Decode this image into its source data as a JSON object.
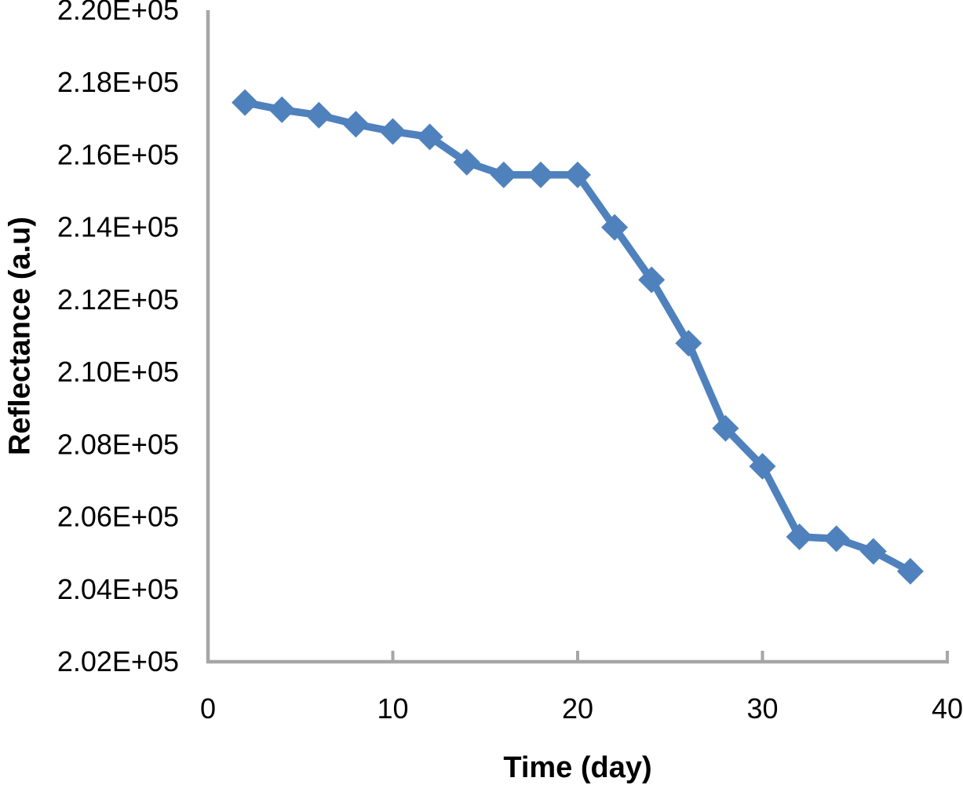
{
  "chart_data": {
    "type": "line",
    "title": "",
    "xlabel": "Time (day)",
    "ylabel": "Reflectance (a.u)",
    "x": [
      2,
      4,
      6,
      8,
      10,
      12,
      14,
      16,
      18,
      20,
      22,
      24,
      26,
      28,
      30,
      32,
      34,
      36,
      38
    ],
    "series": [
      {
        "name": "Reflectance",
        "values": [
          217450,
          217250,
          217100,
          216850,
          216650,
          216500,
          215800,
          215450,
          215450,
          215450,
          214000,
          212550,
          210800,
          208450,
          207400,
          205450,
          205400,
          205050,
          204500
        ]
      }
    ],
    "xlim": [
      0,
      40
    ],
    "ylim": [
      202000,
      220000
    ],
    "xticks": {
      "values": [
        0,
        10,
        20,
        30,
        40
      ],
      "labels": [
        "0",
        "10",
        "20",
        "30",
        "40"
      ]
    },
    "yticks": {
      "values": [
        220000,
        218000,
        216000,
        214000,
        212000,
        210000,
        208000,
        206000,
        204000,
        202000
      ],
      "labels": [
        "2.20E+05",
        "2.18E+05",
        "2.16E+05",
        "2.14E+05",
        "2.12E+05",
        "2.10E+05",
        "2.08E+05",
        "2.06E+05",
        "2.04E+05",
        "2.02E+05"
      ]
    },
    "grid": false,
    "legend": false,
    "marker": "diamond",
    "colors": {
      "series": "#4F81BD",
      "axis": "#A6A6A6",
      "text": "#000000",
      "background": "#FFFFFF"
    }
  }
}
